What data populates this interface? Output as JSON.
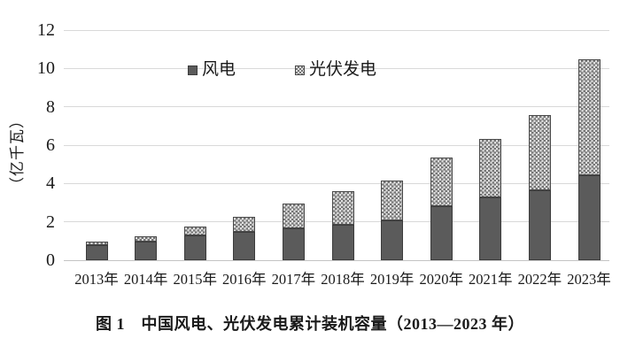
{
  "figure": {
    "caption": "图 1　中国风电、光伏发电累计装机容量（2013—2023 年）",
    "y_axis_title": "（亿千瓦）"
  },
  "legend": {
    "wind_label": "风电",
    "solar_label": "光伏发电"
  },
  "chart_data": {
    "type": "bar",
    "stacked": true,
    "title": "图 1　中国风电、光伏发电累计装机容量（2013—2023 年）",
    "xlabel": "",
    "ylabel": "（亿千瓦）",
    "ylim": [
      0,
      12
    ],
    "yticks": [
      0,
      2,
      4,
      6,
      8,
      10,
      12
    ],
    "grid": true,
    "legend_position": "top-center",
    "categories": [
      "2013年",
      "2014年",
      "2015年",
      "2016年",
      "2017年",
      "2018年",
      "2019年",
      "2020年",
      "2021年",
      "2022年",
      "2023年"
    ],
    "series": [
      {
        "name": "风电",
        "key": "wind",
        "values": [
          0.77,
          0.96,
          1.31,
          1.49,
          1.64,
          1.84,
          2.1,
          2.81,
          3.28,
          3.65,
          4.41
        ]
      },
      {
        "name": "光伏发电",
        "key": "solar",
        "values": [
          0.19,
          0.28,
          0.43,
          0.78,
          1.3,
          1.74,
          2.05,
          2.53,
          3.06,
          3.93,
          6.09
        ]
      }
    ],
    "colors": {
      "wind_fill": "#5b5b5b",
      "wind_border": "#3c3c3c",
      "solar_pattern_dot": "#757575",
      "solar_pattern_bg": "#dedede",
      "gridline": "#d9d9d9",
      "text": "#1a1a1a"
    }
  }
}
